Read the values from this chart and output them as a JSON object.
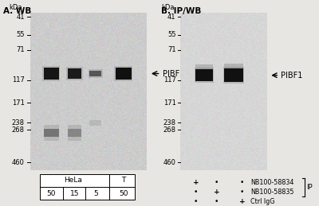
{
  "bg_color": "#e8e6e2",
  "gel_bg_A": "#c8c6c0",
  "gel_bg_B": "#d2d0cc",
  "title_A": "A. WB",
  "title_B": "B. IP/WB",
  "kda_label": "kDa",
  "markers_A": [
    460,
    268,
    238,
    171,
    117,
    71,
    55,
    41
  ],
  "markers_B": [
    460,
    268,
    238,
    171,
    117,
    71,
    55,
    41
  ],
  "band_label": "PIBF1",
  "table_cols": [
    "50",
    "15",
    "5",
    "50"
  ],
  "table_row1": "HeLa",
  "table_row2": "T",
  "nb834_label": "NB100-58834",
  "nb835_label": "NB100-58835",
  "ctrl_label": "Ctrl IgG",
  "ip_label": "IP",
  "font_size_title": 7.5,
  "font_size_marker": 6.0,
  "font_size_band": 7.0,
  "font_size_table": 6.5
}
